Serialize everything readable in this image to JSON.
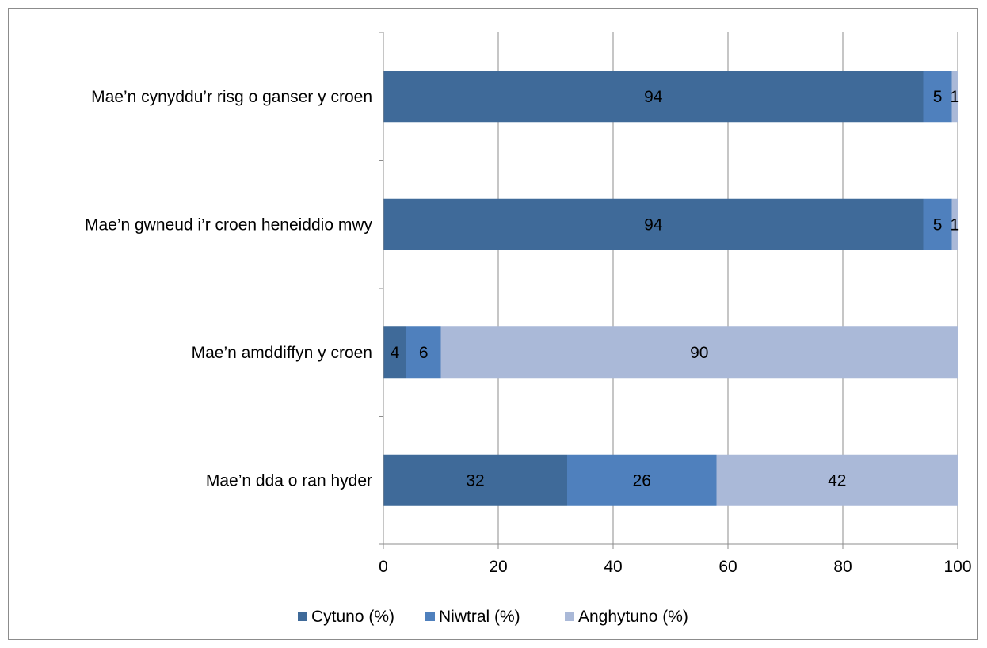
{
  "chart_data": {
    "type": "bar",
    "orientation": "horizontal",
    "stacked": true,
    "categories": [
      "Mae’n cynyddu’r risg o ganser y croen",
      "Mae’n gwneud i’r croen heneiddio mwy",
      "Mae’n amddiffyn y croen",
      "Mae’n dda o ran hyder"
    ],
    "series": [
      {
        "name": "Cytuno (%)",
        "values": [
          94,
          94,
          4,
          32
        ],
        "color": "#3f6a99"
      },
      {
        "name": "Niwtral (%)",
        "values": [
          5,
          5,
          6,
          26
        ],
        "color": "#4f80bd"
      },
      {
        "name": "Anghytuno (%)",
        "values": [
          1,
          1,
          90,
          42
        ],
        "color": "#aab9d8"
      }
    ],
    "xlim": [
      0,
      100
    ],
    "xticks": [
      0,
      20,
      40,
      60,
      80,
      100
    ],
    "title": "",
    "xlabel": "",
    "ylabel": "",
    "grid": "vertical",
    "legend": "bottom"
  }
}
